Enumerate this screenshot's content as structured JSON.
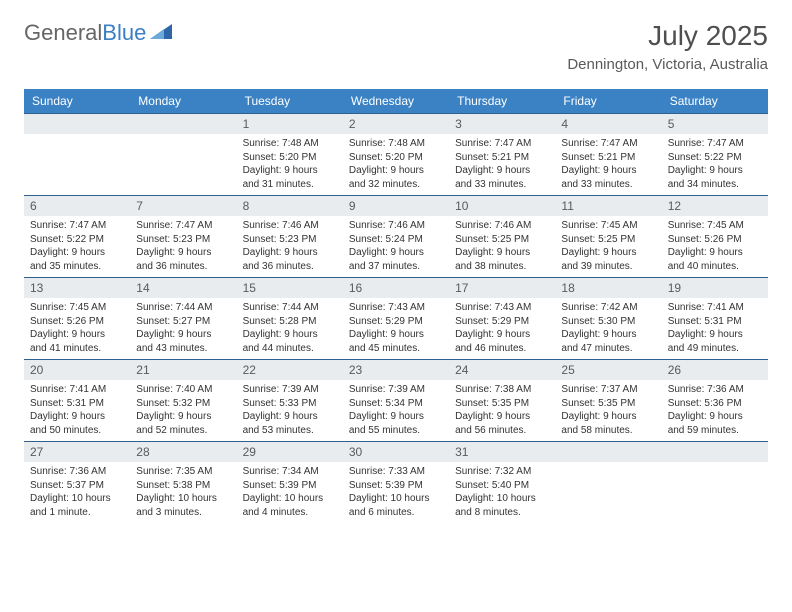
{
  "logo": {
    "part1": "General",
    "part2": "Blue"
  },
  "title": "July 2025",
  "location": "Dennington, Victoria, Australia",
  "colors": {
    "header_bg": "#3b82c4",
    "header_text": "#ffffff",
    "daynum_bg": "#e8ecef",
    "daynum_text": "#5a5a5a",
    "row_border": "#2f5f8f",
    "body_text": "#333333",
    "title_text": "#4f4f4f",
    "logo_general": "#666666",
    "logo_blue": "#3b7fc4",
    "background": "#ffffff"
  },
  "typography": {
    "title_fontsize": 28,
    "location_fontsize": 15,
    "header_fontsize": 12,
    "daynum_fontsize": 12,
    "cell_fontsize": 10
  },
  "weekdays": [
    "Sunday",
    "Monday",
    "Tuesday",
    "Wednesday",
    "Thursday",
    "Friday",
    "Saturday"
  ],
  "weeks": [
    [
      null,
      null,
      {
        "n": "1",
        "sunrise": "Sunrise: 7:48 AM",
        "sunset": "Sunset: 5:20 PM",
        "daylight": "Daylight: 9 hours and 31 minutes."
      },
      {
        "n": "2",
        "sunrise": "Sunrise: 7:48 AM",
        "sunset": "Sunset: 5:20 PM",
        "daylight": "Daylight: 9 hours and 32 minutes."
      },
      {
        "n": "3",
        "sunrise": "Sunrise: 7:47 AM",
        "sunset": "Sunset: 5:21 PM",
        "daylight": "Daylight: 9 hours and 33 minutes."
      },
      {
        "n": "4",
        "sunrise": "Sunrise: 7:47 AM",
        "sunset": "Sunset: 5:21 PM",
        "daylight": "Daylight: 9 hours and 33 minutes."
      },
      {
        "n": "5",
        "sunrise": "Sunrise: 7:47 AM",
        "sunset": "Sunset: 5:22 PM",
        "daylight": "Daylight: 9 hours and 34 minutes."
      }
    ],
    [
      {
        "n": "6",
        "sunrise": "Sunrise: 7:47 AM",
        "sunset": "Sunset: 5:22 PM",
        "daylight": "Daylight: 9 hours and 35 minutes."
      },
      {
        "n": "7",
        "sunrise": "Sunrise: 7:47 AM",
        "sunset": "Sunset: 5:23 PM",
        "daylight": "Daylight: 9 hours and 36 minutes."
      },
      {
        "n": "8",
        "sunrise": "Sunrise: 7:46 AM",
        "sunset": "Sunset: 5:23 PM",
        "daylight": "Daylight: 9 hours and 36 minutes."
      },
      {
        "n": "9",
        "sunrise": "Sunrise: 7:46 AM",
        "sunset": "Sunset: 5:24 PM",
        "daylight": "Daylight: 9 hours and 37 minutes."
      },
      {
        "n": "10",
        "sunrise": "Sunrise: 7:46 AM",
        "sunset": "Sunset: 5:25 PM",
        "daylight": "Daylight: 9 hours and 38 minutes."
      },
      {
        "n": "11",
        "sunrise": "Sunrise: 7:45 AM",
        "sunset": "Sunset: 5:25 PM",
        "daylight": "Daylight: 9 hours and 39 minutes."
      },
      {
        "n": "12",
        "sunrise": "Sunrise: 7:45 AM",
        "sunset": "Sunset: 5:26 PM",
        "daylight": "Daylight: 9 hours and 40 minutes."
      }
    ],
    [
      {
        "n": "13",
        "sunrise": "Sunrise: 7:45 AM",
        "sunset": "Sunset: 5:26 PM",
        "daylight": "Daylight: 9 hours and 41 minutes."
      },
      {
        "n": "14",
        "sunrise": "Sunrise: 7:44 AM",
        "sunset": "Sunset: 5:27 PM",
        "daylight": "Daylight: 9 hours and 43 minutes."
      },
      {
        "n": "15",
        "sunrise": "Sunrise: 7:44 AM",
        "sunset": "Sunset: 5:28 PM",
        "daylight": "Daylight: 9 hours and 44 minutes."
      },
      {
        "n": "16",
        "sunrise": "Sunrise: 7:43 AM",
        "sunset": "Sunset: 5:29 PM",
        "daylight": "Daylight: 9 hours and 45 minutes."
      },
      {
        "n": "17",
        "sunrise": "Sunrise: 7:43 AM",
        "sunset": "Sunset: 5:29 PM",
        "daylight": "Daylight: 9 hours and 46 minutes."
      },
      {
        "n": "18",
        "sunrise": "Sunrise: 7:42 AM",
        "sunset": "Sunset: 5:30 PM",
        "daylight": "Daylight: 9 hours and 47 minutes."
      },
      {
        "n": "19",
        "sunrise": "Sunrise: 7:41 AM",
        "sunset": "Sunset: 5:31 PM",
        "daylight": "Daylight: 9 hours and 49 minutes."
      }
    ],
    [
      {
        "n": "20",
        "sunrise": "Sunrise: 7:41 AM",
        "sunset": "Sunset: 5:31 PM",
        "daylight": "Daylight: 9 hours and 50 minutes."
      },
      {
        "n": "21",
        "sunrise": "Sunrise: 7:40 AM",
        "sunset": "Sunset: 5:32 PM",
        "daylight": "Daylight: 9 hours and 52 minutes."
      },
      {
        "n": "22",
        "sunrise": "Sunrise: 7:39 AM",
        "sunset": "Sunset: 5:33 PM",
        "daylight": "Daylight: 9 hours and 53 minutes."
      },
      {
        "n": "23",
        "sunrise": "Sunrise: 7:39 AM",
        "sunset": "Sunset: 5:34 PM",
        "daylight": "Daylight: 9 hours and 55 minutes."
      },
      {
        "n": "24",
        "sunrise": "Sunrise: 7:38 AM",
        "sunset": "Sunset: 5:35 PM",
        "daylight": "Daylight: 9 hours and 56 minutes."
      },
      {
        "n": "25",
        "sunrise": "Sunrise: 7:37 AM",
        "sunset": "Sunset: 5:35 PM",
        "daylight": "Daylight: 9 hours and 58 minutes."
      },
      {
        "n": "26",
        "sunrise": "Sunrise: 7:36 AM",
        "sunset": "Sunset: 5:36 PM",
        "daylight": "Daylight: 9 hours and 59 minutes."
      }
    ],
    [
      {
        "n": "27",
        "sunrise": "Sunrise: 7:36 AM",
        "sunset": "Sunset: 5:37 PM",
        "daylight": "Daylight: 10 hours and 1 minute."
      },
      {
        "n": "28",
        "sunrise": "Sunrise: 7:35 AM",
        "sunset": "Sunset: 5:38 PM",
        "daylight": "Daylight: 10 hours and 3 minutes."
      },
      {
        "n": "29",
        "sunrise": "Sunrise: 7:34 AM",
        "sunset": "Sunset: 5:39 PM",
        "daylight": "Daylight: 10 hours and 4 minutes."
      },
      {
        "n": "30",
        "sunrise": "Sunrise: 7:33 AM",
        "sunset": "Sunset: 5:39 PM",
        "daylight": "Daylight: 10 hours and 6 minutes."
      },
      {
        "n": "31",
        "sunrise": "Sunrise: 7:32 AM",
        "sunset": "Sunset: 5:40 PM",
        "daylight": "Daylight: 10 hours and 8 minutes."
      },
      null,
      null
    ]
  ]
}
